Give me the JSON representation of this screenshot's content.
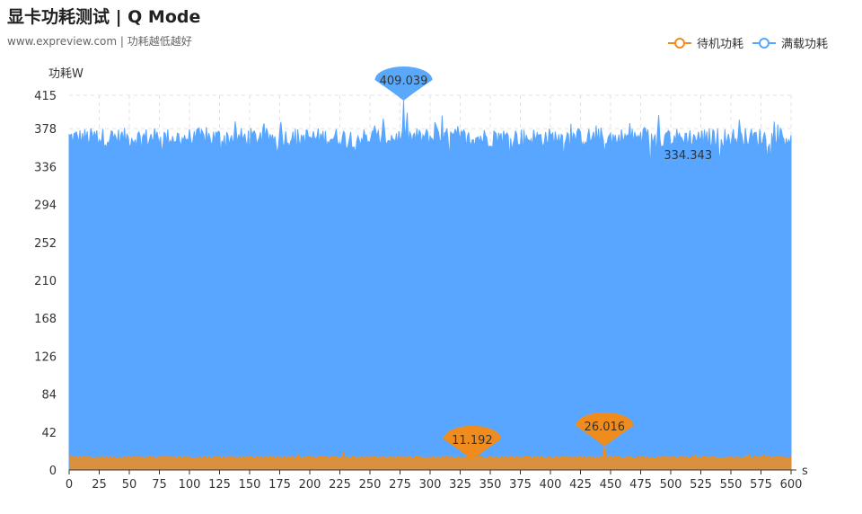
{
  "chart_data": {
    "type": "area",
    "title": "显卡功耗测试 | Q Mode",
    "subtitle": "www.expreview.com | 功耗越低越好",
    "ylabel": "功耗W",
    "xlabel": "s",
    "ylim": [
      0,
      415
    ],
    "xlim": [
      0,
      600
    ],
    "yticks": [
      0,
      42,
      84,
      126,
      168,
      210,
      252,
      294,
      336,
      378,
      415
    ],
    "xticks": [
      0,
      25,
      50,
      75,
      100,
      125,
      150,
      175,
      200,
      225,
      250,
      275,
      300,
      325,
      350,
      375,
      400,
      425,
      450,
      475,
      500,
      525,
      550,
      575,
      600
    ],
    "grid": true,
    "legend_position": "top-right",
    "series": [
      {
        "name": "待机功耗",
        "color": "#F08C1E",
        "mean": 13.6,
        "min": 11.192,
        "min_x": 335,
        "max": 26.016,
        "max_x": 445
      },
      {
        "name": "满载功耗",
        "color": "#58A6FF",
        "mean": 368,
        "min": 334.343,
        "min_x": 483,
        "max": 409.039,
        "max_x": 278
      }
    ],
    "annotations": [
      {
        "series": "满载功耗",
        "type": "max",
        "x": 278,
        "y": 409.039,
        "text": "409.039"
      },
      {
        "series": "满载功耗",
        "type": "min",
        "x": 483,
        "y": 334.343,
        "text": "334.343"
      },
      {
        "series": "待机功耗",
        "type": "min",
        "x": 335,
        "y": 11.192,
        "text": "11.192"
      },
      {
        "series": "待机功耗",
        "type": "max",
        "x": 445,
        "y": 26.016,
        "text": "26.016"
      }
    ]
  }
}
